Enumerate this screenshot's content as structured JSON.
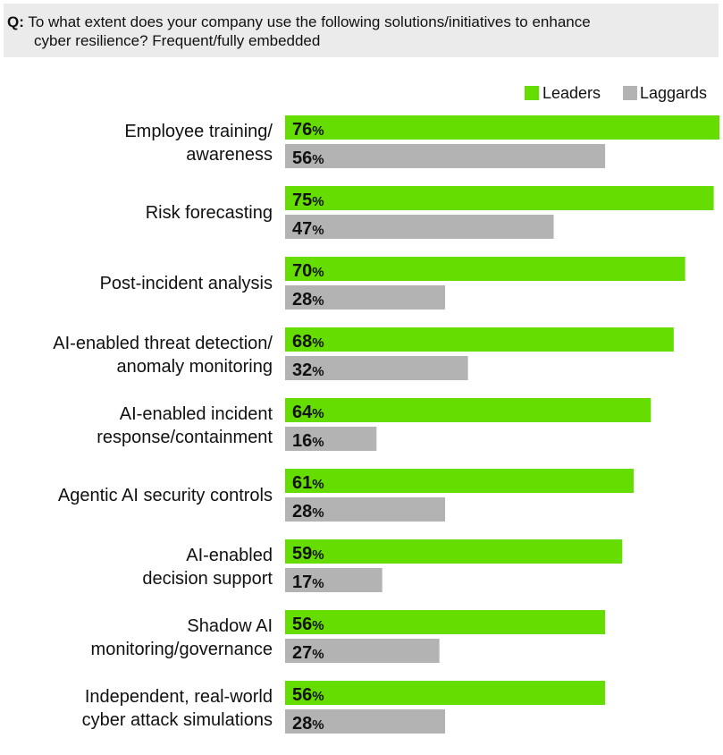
{
  "question": {
    "prefix": "Q:",
    "line1": "To what extent does your company use the following solutions/initiatives to enhance",
    "line2": "cyber resilience? Frequent/fully embedded"
  },
  "colors": {
    "leaders": "#66dd00",
    "laggards": "#b3b3b3"
  },
  "chart_data": {
    "type": "bar",
    "orientation": "horizontal",
    "unit": "%",
    "legend_position": "top-right",
    "xlim": [
      0,
      76
    ],
    "categories": [
      [
        "Employee training/",
        "awareness"
      ],
      [
        "Risk forecasting"
      ],
      [
        "Post-incident analysis"
      ],
      [
        "AI-enabled threat detection/",
        "anomaly monitoring"
      ],
      [
        "AI-enabled incident",
        "response/containment"
      ],
      [
        "Agentic AI security controls"
      ],
      [
        "AI-enabled",
        "decision support"
      ],
      [
        "Shadow AI",
        "monitoring/governance"
      ],
      [
        "Independent, real-world",
        "cyber attack simulations"
      ]
    ],
    "series": [
      {
        "name": "Leaders",
        "color": "#66dd00",
        "values": [
          76,
          75,
          70,
          68,
          64,
          61,
          59,
          56,
          56
        ]
      },
      {
        "name": "Laggards",
        "color": "#b3b3b3",
        "values": [
          56,
          47,
          28,
          32,
          16,
          28,
          17,
          27,
          28
        ]
      }
    ]
  }
}
